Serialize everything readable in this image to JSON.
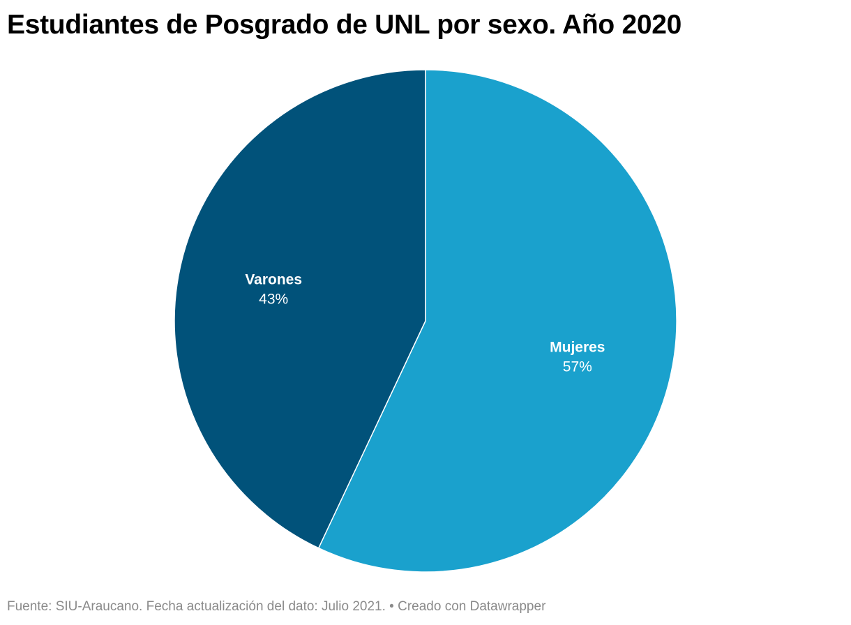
{
  "chart_data": {
    "type": "pie",
    "title": "Estudiantes de Posgrado de UNL por sexo. Año 2020",
    "slices": [
      {
        "name": "Mujeres",
        "value": 57,
        "label": "57%",
        "color": "#1aa1cd"
      },
      {
        "name": "Varones",
        "value": 43,
        "label": "43%",
        "color": "#01527a"
      }
    ],
    "start_angle_deg": 0,
    "direction": "clockwise"
  },
  "footer": {
    "source": "Fuente: SIU-Araucano. Fecha actualización del dato: Julio 2021.",
    "separator": "•",
    "credit": "Creado con Datawrapper"
  }
}
